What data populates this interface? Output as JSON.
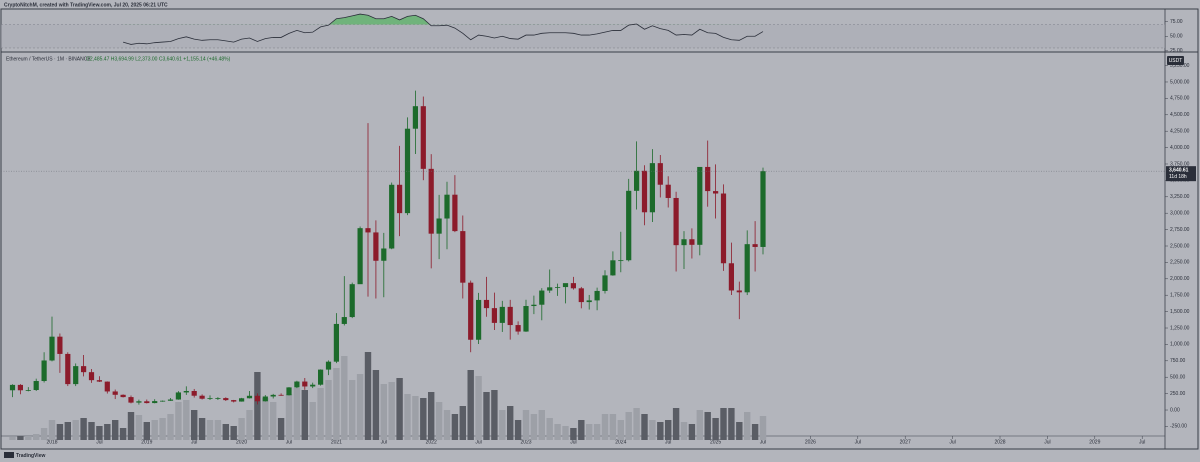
{
  "header": "CryptoNitchM, created with TradingView.com, Jul 20, 2025 06:21 UTC",
  "footer": "TradingView",
  "chart_data": {
    "type": "candlestick",
    "title": "Ethereum / TetherUS · 1M · BINANCE",
    "ohlc_legend": "O2,485.47 H3,694.99 L2,373.00 C3,640.61 +1,155.14 (+46.48%)",
    "currency": "USDT",
    "last_price": {
      "value": 3640.61,
      "label": "3,640.61"
    },
    "countdown": "11d 18h",
    "x": [
      "2017-08",
      "2017-09",
      "2017-10",
      "2017-11",
      "2017-12",
      "2018-01",
      "2018-02",
      "2018-03",
      "2018-04",
      "2018-05",
      "2018-06",
      "2018-07",
      "2018-08",
      "2018-09",
      "2018-10",
      "2018-11",
      "2018-12",
      "2019-01",
      "2019-02",
      "2019-03",
      "2019-04",
      "2019-05",
      "2019-06",
      "2019-07",
      "2019-08",
      "2019-09",
      "2019-10",
      "2019-11",
      "2019-12",
      "2020-01",
      "2020-02",
      "2020-03",
      "2020-04",
      "2020-05",
      "2020-06",
      "2020-07",
      "2020-08",
      "2020-09",
      "2020-10",
      "2020-11",
      "2020-12",
      "2021-01",
      "2021-02",
      "2021-03",
      "2021-04",
      "2021-05",
      "2021-06",
      "2021-07",
      "2021-08",
      "2021-09",
      "2021-10",
      "2021-11",
      "2021-12",
      "2022-01",
      "2022-02",
      "2022-03",
      "2022-04",
      "2022-05",
      "2022-06",
      "2022-07",
      "2022-08",
      "2022-09",
      "2022-10",
      "2022-11",
      "2022-12",
      "2023-01",
      "2023-02",
      "2023-03",
      "2023-04",
      "2023-05",
      "2023-06",
      "2023-07",
      "2023-08",
      "2023-09",
      "2023-10",
      "2023-11",
      "2023-12",
      "2024-01",
      "2024-02",
      "2024-03",
      "2024-04",
      "2024-05",
      "2024-06",
      "2024-07",
      "2024-08",
      "2024-09",
      "2024-10",
      "2024-11",
      "2024-12",
      "2025-01",
      "2025-02",
      "2025-03",
      "2025-04",
      "2025-05",
      "2025-06",
      "2025-07"
    ],
    "open": [
      301,
      383,
      301,
      305,
      442,
      755,
      1118,
      855,
      395,
      669,
      577,
      455,
      433,
      283,
      232,
      197,
      113,
      133,
      106,
      136,
      141,
      160,
      268,
      290,
      218,
      172,
      180,
      182,
      151,
      129,
      179,
      217,
      133,
      206,
      231,
      225,
      345,
      434,
      359,
      386,
      616,
      737,
      1312,
      1417,
      1918,
      2772,
      2707,
      2275,
      2462,
      3433,
      3001,
      4288,
      4631,
      3676,
      2688,
      2919,
      3282,
      2727,
      1941,
      1071,
      1678,
      1553,
      1328,
      1572,
      1295,
      1196,
      1585,
      1605,
      1821,
      1870,
      1874,
      1934,
      1855,
      1645,
      1671,
      1815,
      2052,
      2282,
      2283,
      3341,
      3646,
      3014,
      3763,
      3434,
      3232,
      2513,
      2603,
      2518,
      3705,
      3337,
      3300,
      2237,
      1822,
      1794,
      2528,
      2485.47
    ],
    "high": [
      393,
      394,
      349,
      478,
      881,
      1423,
      1167,
      880,
      710,
      838,
      625,
      515,
      436,
      312,
      238,
      222,
      158,
      160,
      165,
      145,
      184,
      288,
      361,
      321,
      239,
      223,
      197,
      194,
      154,
      185,
      289,
      253,
      228,
      246,
      253,
      348,
      446,
      488,
      417,
      620,
      757,
      1476,
      2041,
      1942,
      2797,
      4372,
      2891,
      2700,
      3467,
      4027,
      4460,
      4868,
      4778,
      3900,
      3280,
      3479,
      3581,
      2965,
      1973,
      1785,
      2030,
      1789,
      1664,
      1679,
      1352,
      1680,
      1743,
      1857,
      2142,
      1927,
      1929,
      2029,
      1876,
      1754,
      1866,
      2131,
      2418,
      2717,
      3523,
      4094,
      3730,
      3977,
      3887,
      3563,
      3326,
      2727,
      2769,
      3686,
      4107,
      3744,
      3439,
      2551,
      1957,
      2738,
      2880,
      3694.99
    ],
    "low": [
      196,
      240,
      285,
      290,
      420,
      742,
      566,
      365,
      365,
      513,
      413,
      427,
      251,
      167,
      190,
      102,
      82,
      100,
      102,
      126,
      139,
      157,
      230,
      190,
      160,
      152,
      152,
      138,
      116,
      127,
      176,
      86,
      129,
      176,
      217,
      222,
      334,
      308,
      334,
      371,
      532,
      714,
      1289,
      1401,
      1931,
      1728,
      1700,
      1719,
      2451,
      2651,
      2971,
      3903,
      3503,
      2159,
      2300,
      2450,
      2711,
      1700,
      881,
      1006,
      1422,
      1220,
      1190,
      1073,
      1150,
      1191,
      1461,
      1368,
      1785,
      1740,
      1626,
      1835,
      1550,
      1531,
      1521,
      1776,
      2047,
      2100,
      2265,
      3056,
      2817,
      2865,
      3240,
      3087,
      2111,
      2150,
      2310,
      2358,
      3099,
      2920,
      2120,
      1754,
      1385,
      1752,
      2111,
      2373.0
    ],
    "close": [
      383,
      301,
      305,
      442,
      755,
      1118,
      855,
      395,
      669,
      577,
      455,
      433,
      283,
      232,
      197,
      113,
      133,
      106,
      136,
      141,
      160,
      268,
      290,
      218,
      172,
      180,
      182,
      151,
      129,
      179,
      217,
      133,
      206,
      231,
      225,
      345,
      434,
      359,
      386,
      616,
      737,
      1312,
      1417,
      1918,
      2772,
      2707,
      2275,
      2462,
      3433,
      3001,
      4288,
      4631,
      3676,
      2688,
      2919,
      3282,
      2727,
      1941,
      1071,
      1678,
      1553,
      1328,
      1572,
      1295,
      1196,
      1585,
      1605,
      1821,
      1870,
      1874,
      1934,
      1855,
      1645,
      1671,
      1815,
      2052,
      2282,
      2283,
      3341,
      3646,
      3014,
      3763,
      3434,
      3232,
      2513,
      2603,
      2518,
      3705,
      3337,
      3300,
      2237,
      1822,
      1794,
      2528,
      2485.47,
      3640.61
    ],
    "volume": [
      3,
      4,
      4,
      6,
      12,
      20,
      16,
      18,
      20,
      22,
      18,
      14,
      16,
      20,
      12,
      28,
      25,
      18,
      20,
      22,
      26,
      38,
      40,
      30,
      22,
      20,
      20,
      16,
      14,
      22,
      30,
      68,
      42,
      38,
      22,
      46,
      52,
      50,
      38,
      52,
      60,
      72,
      84,
      60,
      66,
      88,
      70,
      56,
      58,
      62,
      46,
      44,
      42,
      48,
      38,
      30,
      26,
      34,
      70,
      64,
      48,
      50,
      30,
      34,
      20,
      30,
      26,
      30,
      22,
      16,
      14,
      12,
      20,
      16,
      16,
      26,
      26,
      20,
      28,
      32,
      26,
      20,
      18,
      20,
      32,
      18,
      16,
      30,
      28,
      22,
      32,
      32,
      18,
      28,
      16,
      24
    ],
    "rsi": [
      null,
      null,
      null,
      null,
      null,
      null,
      null,
      null,
      null,
      null,
      null,
      null,
      null,
      null,
      40,
      36,
      38,
      37,
      39,
      40,
      41,
      46,
      49,
      45,
      43,
      44,
      44,
      42,
      40,
      45,
      47,
      41,
      46,
      48,
      48,
      55,
      60,
      56,
      57,
      66,
      69,
      80,
      82,
      85,
      88,
      86,
      80,
      80,
      84,
      78,
      84,
      86,
      80,
      68,
      68,
      69,
      64,
      55,
      44,
      52,
      50,
      47,
      50,
      46,
      45,
      52,
      52,
      55,
      56,
      56,
      56,
      55,
      52,
      52,
      54,
      57,
      60,
      60,
      69,
      71,
      62,
      68,
      63,
      60,
      52,
      53,
      52,
      62,
      56,
      55,
      48,
      44,
      43,
      50,
      50,
      58
    ],
    "rsi_band": [
      30,
      70
    ],
    "rsi_ylim": [
      23,
      95
    ],
    "rsi_yticks": [
      {
        "value": 75,
        "label": "75.00"
      },
      {
        "value": 50,
        "label": "50.00"
      },
      {
        "value": 25,
        "label": "25.00"
      }
    ],
    "ylim": [
      -457,
      5457
    ],
    "yticks": [
      {
        "value": -250,
        "label": "-250.00"
      },
      {
        "value": 0,
        "label": "0.00"
      },
      {
        "value": 250,
        "label": "250.00"
      },
      {
        "value": 500,
        "label": "500.00"
      },
      {
        "value": 750,
        "label": "750.00"
      },
      {
        "value": 1000,
        "label": "1,000.00"
      },
      {
        "value": 1250,
        "label": "1,250.00"
      },
      {
        "value": 1500,
        "label": "1,500.00"
      },
      {
        "value": 1750,
        "label": "1,750.00"
      },
      {
        "value": 2000,
        "label": "2,000.00"
      },
      {
        "value": 2250,
        "label": "2,250.00"
      },
      {
        "value": 2500,
        "label": "2,500.00"
      },
      {
        "value": 2750,
        "label": "2,750.00"
      },
      {
        "value": 3000,
        "label": "3,000.00"
      },
      {
        "value": 3250,
        "label": "3,250.00"
      },
      {
        "value": 3500,
        "label": "3,500.00"
      },
      {
        "value": 3750,
        "label": "3,750.00"
      },
      {
        "value": 4000,
        "label": "4,000.00"
      },
      {
        "value": 4250,
        "label": "4,250.00"
      },
      {
        "value": 4500,
        "label": "4,500.00"
      },
      {
        "value": 4750,
        "label": "4,750.00"
      },
      {
        "value": 5000,
        "label": "5,000.00"
      },
      {
        "value": 5250,
        "label": "5,250.00"
      }
    ],
    "xticks": [
      {
        "value": "2018-01",
        "label": "2018"
      },
      {
        "value": "2018-07",
        "label": "Jul"
      },
      {
        "value": "2019-01",
        "label": "2019"
      },
      {
        "value": "2019-07",
        "label": "Jul"
      },
      {
        "value": "2020-01",
        "label": "2020"
      },
      {
        "value": "2020-07",
        "label": "Jul"
      },
      {
        "value": "2021-01",
        "label": "2021"
      },
      {
        "value": "2021-07",
        "label": "Jul"
      },
      {
        "value": "2022-01",
        "label": "2022"
      },
      {
        "value": "2022-07",
        "label": "Jul"
      },
      {
        "value": "2023-01",
        "label": "2023"
      },
      {
        "value": "2023-07",
        "label": "Jul"
      },
      {
        "value": "2024-01",
        "label": "2024"
      },
      {
        "value": "2024-07",
        "label": "Jul"
      },
      {
        "value": "2025-01",
        "label": "2025"
      },
      {
        "value": "2025-07",
        "label": "Jul"
      },
      {
        "value": "2026-01",
        "label": "2026"
      },
      {
        "value": "2026-07",
        "label": "Jul"
      },
      {
        "value": "2027-01",
        "label": "2027"
      },
      {
        "value": "2027-07",
        "label": "Jul"
      },
      {
        "value": "2028-01",
        "label": "2028"
      },
      {
        "value": "2028-07",
        "label": "Jul"
      },
      {
        "value": "2029-01",
        "label": "2029"
      },
      {
        "value": "2029-07",
        "label": "Jul"
      }
    ],
    "grid": false,
    "up_color": "#1c6a2b",
    "down_color": "#8c1b2b",
    "volume_up_color": "#9da0a7",
    "volume_down_color": "#5a5d65",
    "rsi_color": "#2a2e39",
    "rsi_fill_color": "#5fb36a"
  }
}
